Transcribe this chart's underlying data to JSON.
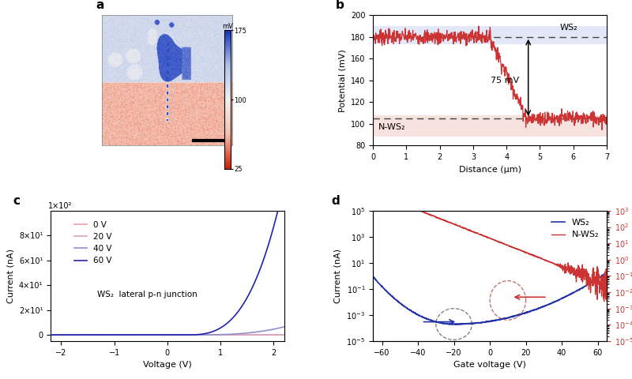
{
  "panel_a": {
    "label": "a",
    "colormap_label": "mV",
    "cbar_ticks": [
      175,
      100,
      25
    ],
    "cbar_tick_labels": [
      "175",
      "100",
      "25"
    ]
  },
  "panel_b": {
    "label": "b",
    "xlabel": "Distance (μm)",
    "ylabel": "Potential (mV)",
    "xlim": [
      0,
      7
    ],
    "ylim": [
      80,
      200
    ],
    "yticks": [
      80,
      100,
      120,
      140,
      160,
      180,
      200
    ],
    "xticks": [
      0,
      1,
      2,
      3,
      4,
      5,
      6,
      7
    ],
    "ws2_level": 180,
    "nws2_level": 105,
    "ws2_band": [
      173,
      190
    ],
    "nws2_band": [
      88,
      108
    ],
    "annotation": "75 mV",
    "ws2_label": "WS₂",
    "nws2_label": "N-WS₂",
    "transition_start": 3.5,
    "transition_end": 4.6
  },
  "panel_c": {
    "label": "c",
    "xlabel": "Voltage (V)",
    "ylabel": "Current (nA)",
    "xlim": [
      -2.2,
      2.2
    ],
    "ylim": [
      -5,
      100
    ],
    "annotation": "WS₂  lateral p-n junction",
    "legend": [
      "0 V",
      "20 V",
      "40 V",
      "60 V"
    ],
    "colors_c": [
      "#f0a0a0",
      "#dda0c0",
      "#9090cc",
      "#2222aa"
    ],
    "ytick_vals": [
      0,
      20,
      40,
      60,
      80
    ],
    "ytick_labels": [
      "0",
      "2×10¹",
      "4×10¹",
      "6×10¹",
      "8×10¹"
    ],
    "xticks": [
      -2,
      -1,
      0,
      1,
      2
    ],
    "top_label": "1×10²"
  },
  "panel_d": {
    "label": "d",
    "xlabel": "Gate voltage (V)",
    "ylabel_left": "Current (nA)",
    "ylabel_right": "Current (nA)",
    "xlim": [
      -65,
      65
    ],
    "ws2_label": "WS₂",
    "nws2_label": "N-WS₂",
    "color_ws2": "#2233aa",
    "color_nws2": "#cc3333",
    "xticks": [
      -60,
      -40,
      -20,
      0,
      20,
      40,
      60
    ],
    "ylim_log": [
      -5,
      5
    ]
  },
  "figure_bg": "#ffffff"
}
